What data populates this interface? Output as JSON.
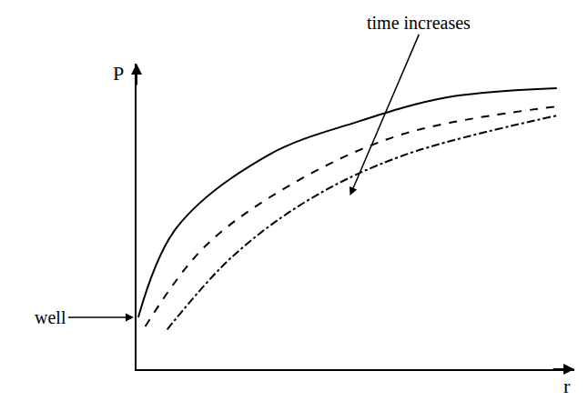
{
  "chart_data": {
    "type": "line",
    "x_label": "r",
    "y_label": "P",
    "xlim": [
      0,
      10
    ],
    "ylim": [
      0,
      10
    ],
    "tick_labels": false,
    "grid": false,
    "series": [
      {
        "color": "#000000",
        "line_style": "solid",
        "x": [
          0.04,
          0.9,
          3.0,
          5.05,
          7.1,
          9.6
        ],
        "values": [
          1.7,
          4.6,
          7.0,
          8.1,
          8.9,
          9.2
        ]
      },
      {
        "color": "#000000",
        "line_style": "dash",
        "x": [
          0.2,
          1.55,
          3.6,
          6.1,
          9.6
        ],
        "values": [
          1.4,
          4.0,
          6.1,
          7.7,
          8.6
        ]
      },
      {
        "color": "#000000",
        "line_style": "dashdot",
        "x": [
          0.7,
          2.2,
          4.0,
          6.1,
          9.6
        ],
        "values": [
          1.3,
          3.7,
          5.6,
          7.0,
          8.3
        ]
      }
    ],
    "annotations": [
      {
        "text": "time increases",
        "x": 4.85,
        "y": 5.6
      },
      {
        "text": "well",
        "x": 0,
        "y": 1.7
      }
    ]
  }
}
